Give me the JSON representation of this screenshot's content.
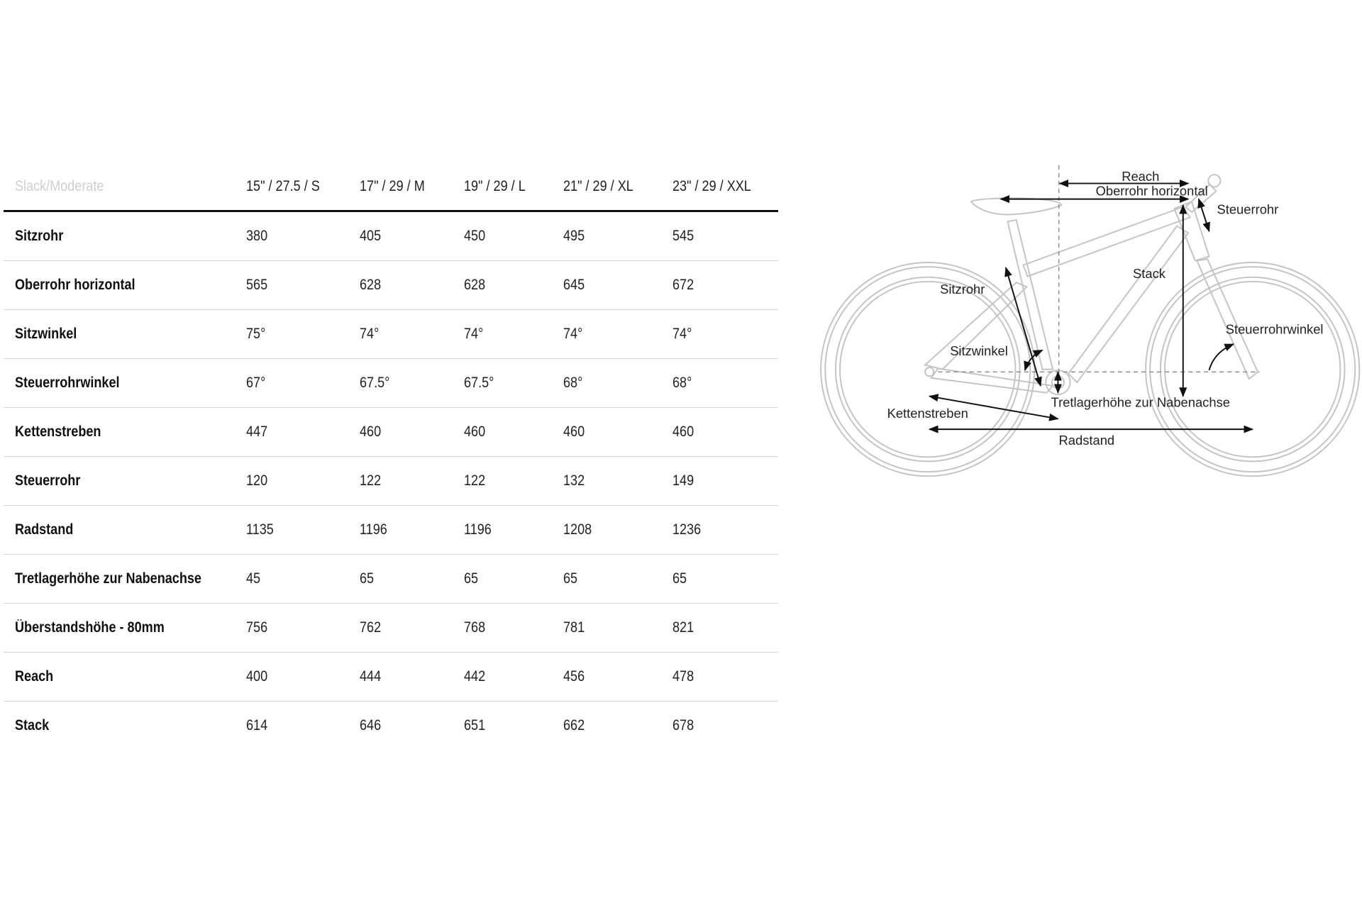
{
  "table": {
    "title": "Slack/Moderate",
    "sizes": [
      "15\" / 27.5 / S",
      "17\" / 29 / M",
      "19\" / 29 / L",
      "21\" / 29 / XL",
      "23\" / 29 / XXL"
    ],
    "rows": [
      {
        "label": "Sitzrohr",
        "values": [
          "380",
          "405",
          "450",
          "495",
          "545"
        ]
      },
      {
        "label": "Oberrohr horizontal",
        "values": [
          "565",
          "628",
          "628",
          "645",
          "672"
        ]
      },
      {
        "label": "Sitzwinkel",
        "values": [
          "75°",
          "74°",
          "74°",
          "74°",
          "74°"
        ]
      },
      {
        "label": "Steuerrohrwinkel",
        "values": [
          "67°",
          "67.5°",
          "67.5°",
          "68°",
          "68°"
        ]
      },
      {
        "label": "Kettenstreben",
        "values": [
          "447",
          "460",
          "460",
          "460",
          "460"
        ]
      },
      {
        "label": "Steuerrohr",
        "values": [
          "120",
          "122",
          "122",
          "132",
          "149"
        ]
      },
      {
        "label": "Radstand",
        "values": [
          "1135",
          "1196",
          "1196",
          "1208",
          "1236"
        ]
      },
      {
        "label": "Tretlagerhöhe zur Nabenachse",
        "values": [
          "45",
          "65",
          "65",
          "65",
          "65"
        ]
      },
      {
        "label": "Überstandshöhe - 80mm",
        "values": [
          "756",
          "762",
          "768",
          "781",
          "821"
        ]
      },
      {
        "label": "Reach",
        "values": [
          "400",
          "444",
          "442",
          "456",
          "478"
        ]
      },
      {
        "label": "Stack",
        "values": [
          "614",
          "646",
          "651",
          "662",
          "678"
        ]
      }
    ]
  },
  "diagram": {
    "labels": {
      "reach": "Reach",
      "oberrohr": "Oberrohr horizontal",
      "steuerrohr": "Steuerrohr",
      "stack": "Stack",
      "sitzrohr": "Sitzrohr",
      "steuerrohrwinkel": "Steuerrohrwinkel",
      "sitzwinkel": "Sitzwinkel",
      "tretlager": "Tretlagerhöhe zur Nabenachse",
      "kettenstreben": "Kettenstreben",
      "radstand": "Radstand"
    },
    "colors": {
      "frame": "#c4c4c4",
      "arrows": "#111111",
      "title": "#cfcfcf"
    }
  }
}
